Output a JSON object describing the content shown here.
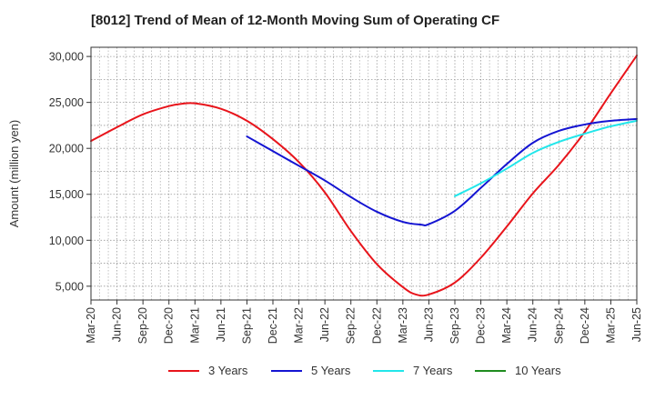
{
  "chart_data": {
    "type": "line",
    "title": "[8012]  Trend of Mean of 12-Month Moving Sum of Operating CF",
    "xlabel": "",
    "ylabel": "Amount (million yen)",
    "ylim": [
      3500,
      31000
    ],
    "yticks": [
      5000,
      10000,
      15000,
      20000,
      25000,
      30000
    ],
    "ytick_labels": [
      "5,000",
      "10,000",
      "15,000",
      "20,000",
      "25,000",
      "30,000"
    ],
    "x_categories": [
      "Mar-20",
      "Jun-20",
      "Sep-20",
      "Dec-20",
      "Mar-21",
      "Jun-21",
      "Sep-21",
      "Dec-21",
      "Mar-22",
      "Jun-22",
      "Sep-22",
      "Dec-22",
      "Mar-23",
      "Jun-23",
      "Sep-23",
      "Dec-23",
      "Mar-24",
      "Jun-24",
      "Sep-24",
      "Dec-24",
      "Mar-25",
      "Jun-25"
    ],
    "grid": true,
    "legend_position": "bottom",
    "series": [
      {
        "name": "3 Years",
        "color": "#e8141b",
        "points": [
          [
            0,
            20800
          ],
          [
            1,
            22300
          ],
          [
            2,
            23700
          ],
          [
            3,
            24600
          ],
          [
            3.5,
            24850
          ],
          [
            4,
            24900
          ],
          [
            5,
            24300
          ],
          [
            6,
            23000
          ],
          [
            7,
            21000
          ],
          [
            8,
            18500
          ],
          [
            9,
            15200
          ],
          [
            10,
            11000
          ],
          [
            11,
            7400
          ],
          [
            12,
            4900
          ],
          [
            12.5,
            4100
          ],
          [
            13,
            4100
          ],
          [
            14,
            5400
          ],
          [
            15,
            8100
          ],
          [
            16,
            11500
          ],
          [
            17,
            15100
          ],
          [
            18,
            18200
          ],
          [
            19,
            21800
          ],
          [
            20,
            26000
          ],
          [
            21,
            30100
          ]
        ]
      },
      {
        "name": "5 Years",
        "color": "#1414d2",
        "points": [
          [
            6,
            21300
          ],
          [
            7,
            19700
          ],
          [
            8,
            18100
          ],
          [
            9,
            16500
          ],
          [
            10,
            14700
          ],
          [
            11,
            13100
          ],
          [
            12,
            12000
          ],
          [
            12.7,
            11700
          ],
          [
            13,
            11750
          ],
          [
            14,
            13200
          ],
          [
            15,
            15700
          ],
          [
            16,
            18300
          ],
          [
            17,
            20600
          ],
          [
            18,
            21900
          ],
          [
            19,
            22600
          ],
          [
            20,
            23000
          ],
          [
            21,
            23200
          ]
        ]
      },
      {
        "name": "7 Years",
        "color": "#22e6ea",
        "points": [
          [
            14,
            14800
          ],
          [
            15,
            16200
          ],
          [
            16,
            17800
          ],
          [
            17,
            19500
          ],
          [
            18,
            20700
          ],
          [
            19,
            21600
          ],
          [
            20,
            22400
          ],
          [
            21,
            23000
          ]
        ]
      },
      {
        "name": "10 Years",
        "color": "#1f8c1f",
        "points": []
      }
    ]
  }
}
